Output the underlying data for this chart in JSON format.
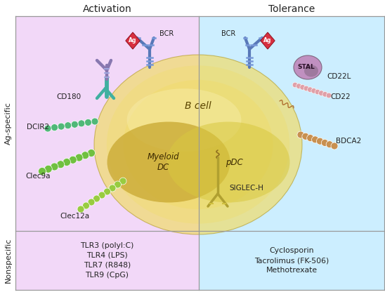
{
  "title_activation": "Activation",
  "title_tolerance": "Tolerance",
  "label_ag_specific": "Ag-specific",
  "label_nonspecific": "Nonspecific",
  "bg_left": "#f2d8f8",
  "bg_right": "#cceeff",
  "border_color": "#999999",
  "text_color": "#222222",
  "nonspecific_left": "TLR3 (polyl:C)\nTLR4 (LPS)\nTLR7 (R848)\nTLR9 (CpG)",
  "nonspecific_right": "Cyclosporin\nTacrolimus (FK-506)\nMethotrexate",
  "label_bcr_left": "BCR",
  "label_bcr_right": "BCR",
  "label_cd180": "CD180",
  "label_dcir2": "DCIR2",
  "label_clec9a": "Clec9a",
  "label_clec12a": "Clec12a",
  "label_stal": "STAL",
  "label_cd22l": "CD22L",
  "label_cd22": "CD22",
  "label_bdca2": "BDCA2",
  "label_siglec": "SIGLEC-H",
  "text_bcell": "B cell",
  "text_myeloid": "Myeloid\nDC",
  "text_pdc": "pDC",
  "bcell_color": "#f0dc6a",
  "mdc_color": "#c8a830",
  "pdc_color": "#d8c840",
  "bcr_color1": "#5878b8",
  "bcr_color2": "#7898d8",
  "ag_color": "#d83040",
  "cd180_purple": "#8878b0",
  "cd180_cyan": "#40b0a0",
  "dcir2_color": "#50b878",
  "clec9a_color": "#70c040",
  "clec12a_color": "#98cc40",
  "stal_color": "#c090c0",
  "stal_dark": "#907090",
  "cd22_color": "#e0a0a8",
  "bdca2_color": "#c89050",
  "siglec_color": "#b0a030"
}
